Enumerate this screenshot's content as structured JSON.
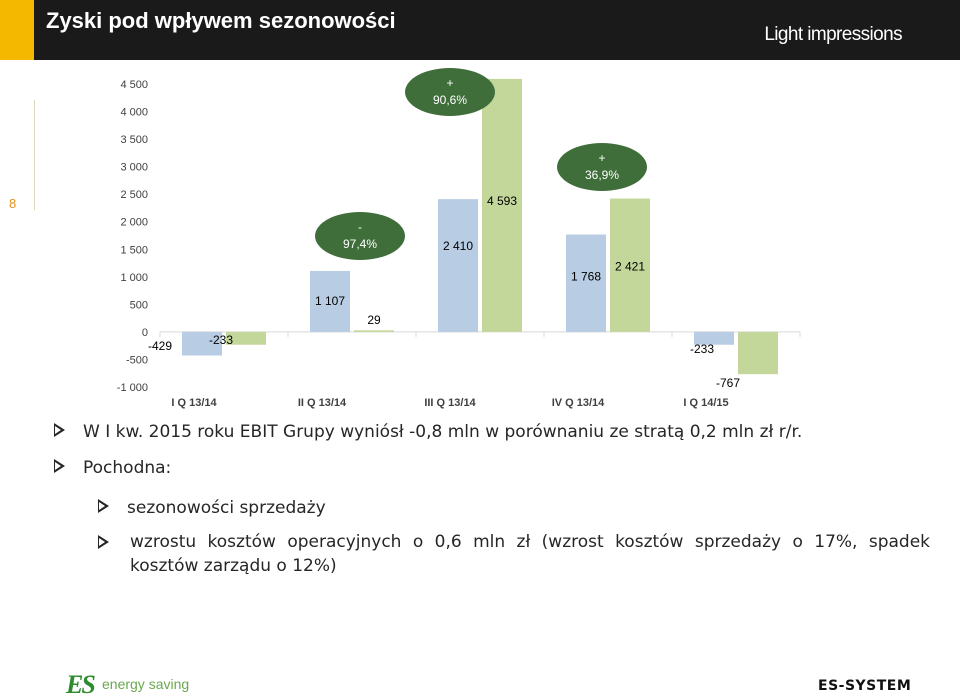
{
  "header": {
    "title": "Zyski pod wpływem sezonowości",
    "brand": "Light impressions"
  },
  "slide_number": "8",
  "chart_data": {
    "type": "bar",
    "categories": [
      "I Q 13/14",
      "II Q 13/14",
      "III Q 13/14",
      "IV Q 13/14",
      "I Q 14/15"
    ],
    "series": [
      {
        "values": [
          -429,
          1107,
          2410,
          1768,
          -233
        ],
        "color": "#b8cce4"
      },
      {
        "values": [
          -233,
          29,
          4593,
          2421,
          -767
        ],
        "color": "#c4d79b"
      }
    ],
    "data_labels": [
      [
        "-429",
        "1 107",
        "2 410",
        "1 768",
        "-233"
      ],
      [
        "-233",
        "29",
        "4 593",
        "2 421",
        "-767"
      ]
    ],
    "y_ticks": [
      4500,
      4000,
      3500,
      3000,
      2500,
      2000,
      1500,
      1000,
      500,
      0,
      -500,
      -1000
    ],
    "y_tick_labels": [
      "4 500",
      "4 000",
      "3 500",
      "3 000",
      "2 500",
      "2 000",
      "1 500",
      "1 000",
      "500",
      "0",
      "-500",
      "-1 000"
    ],
    "ylim": [
      -1000,
      4500
    ],
    "grid": false,
    "annotations": [
      {
        "category_index": 1,
        "line1": "-",
        "line2": "97,4%"
      },
      {
        "category_index": 2,
        "line1": "+",
        "line2": "90,6%"
      },
      {
        "category_index": 3,
        "line1": "+",
        "line2": "36,9%"
      }
    ],
    "annotation_color": "#3f6e3b"
  },
  "bullets": {
    "b1": "W I kw. 2015 roku EBIT Grupy wyniósł -0,8 mln w porównaniu ze stratą 0,2 mln zł r/r.",
    "b2": "Pochodna:",
    "b3": "sezonowości sprzedaży",
    "b4": "wzrostu kosztów operacyjnych o 0,6 mln zł (wzrost kosztów sprzedaży o 17%, spadek kosztów zarządu o 12%)"
  },
  "footer": {
    "logo_mark": "ES",
    "logo_text": "energy saving",
    "company": "ES-SYSTEM"
  }
}
